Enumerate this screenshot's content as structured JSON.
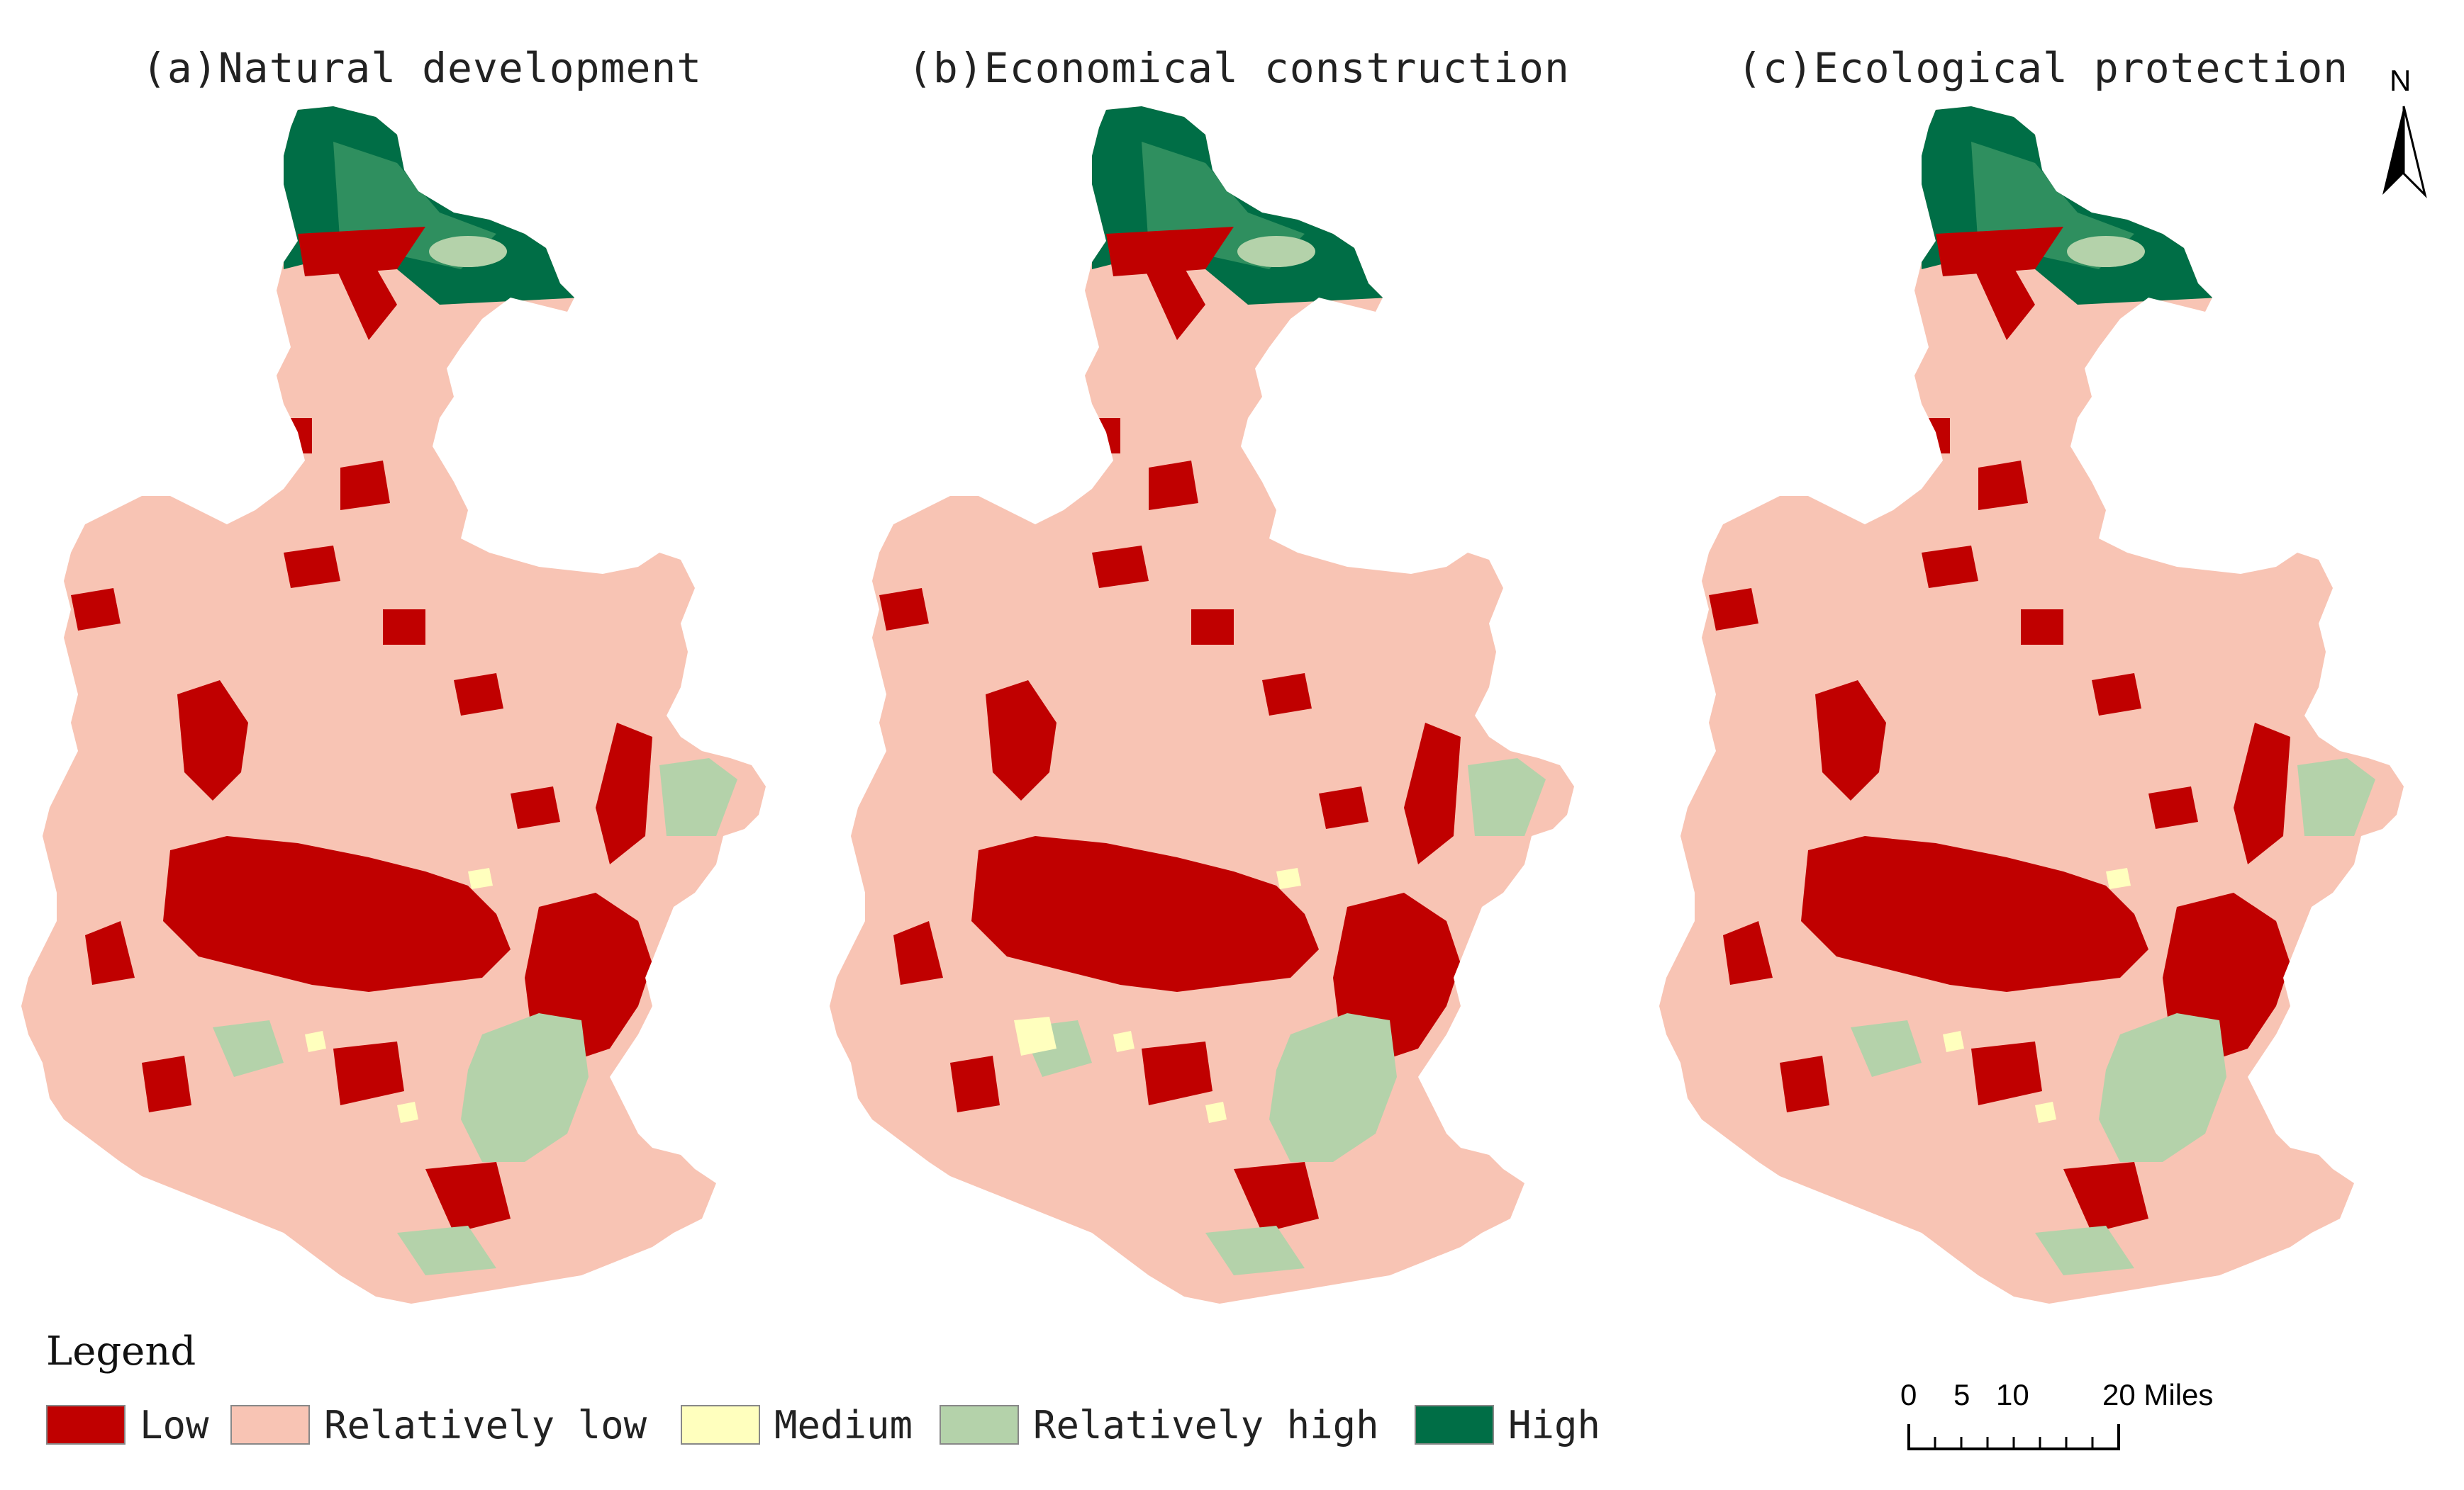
{
  "panels": [
    {
      "title": "(a)Natural development"
    },
    {
      "title": "(b)Economical construction"
    },
    {
      "title": "(c)Ecological protection"
    }
  ],
  "north_arrow": {
    "label": "N"
  },
  "legend": {
    "title": "Legend",
    "items": [
      {
        "label": "Low",
        "color": "#c00000"
      },
      {
        "label": "Relatively low",
        "color": "#f8c4b4"
      },
      {
        "label": "Medium",
        "color": "#ffffbe"
      },
      {
        "label": "Relatively high",
        "color": "#b4d2aa"
      },
      {
        "label": "High",
        "color": "#006e46"
      }
    ]
  },
  "scale_bar": {
    "ticks": [
      "0",
      "5",
      "10",
      "20 Miles"
    ]
  }
}
